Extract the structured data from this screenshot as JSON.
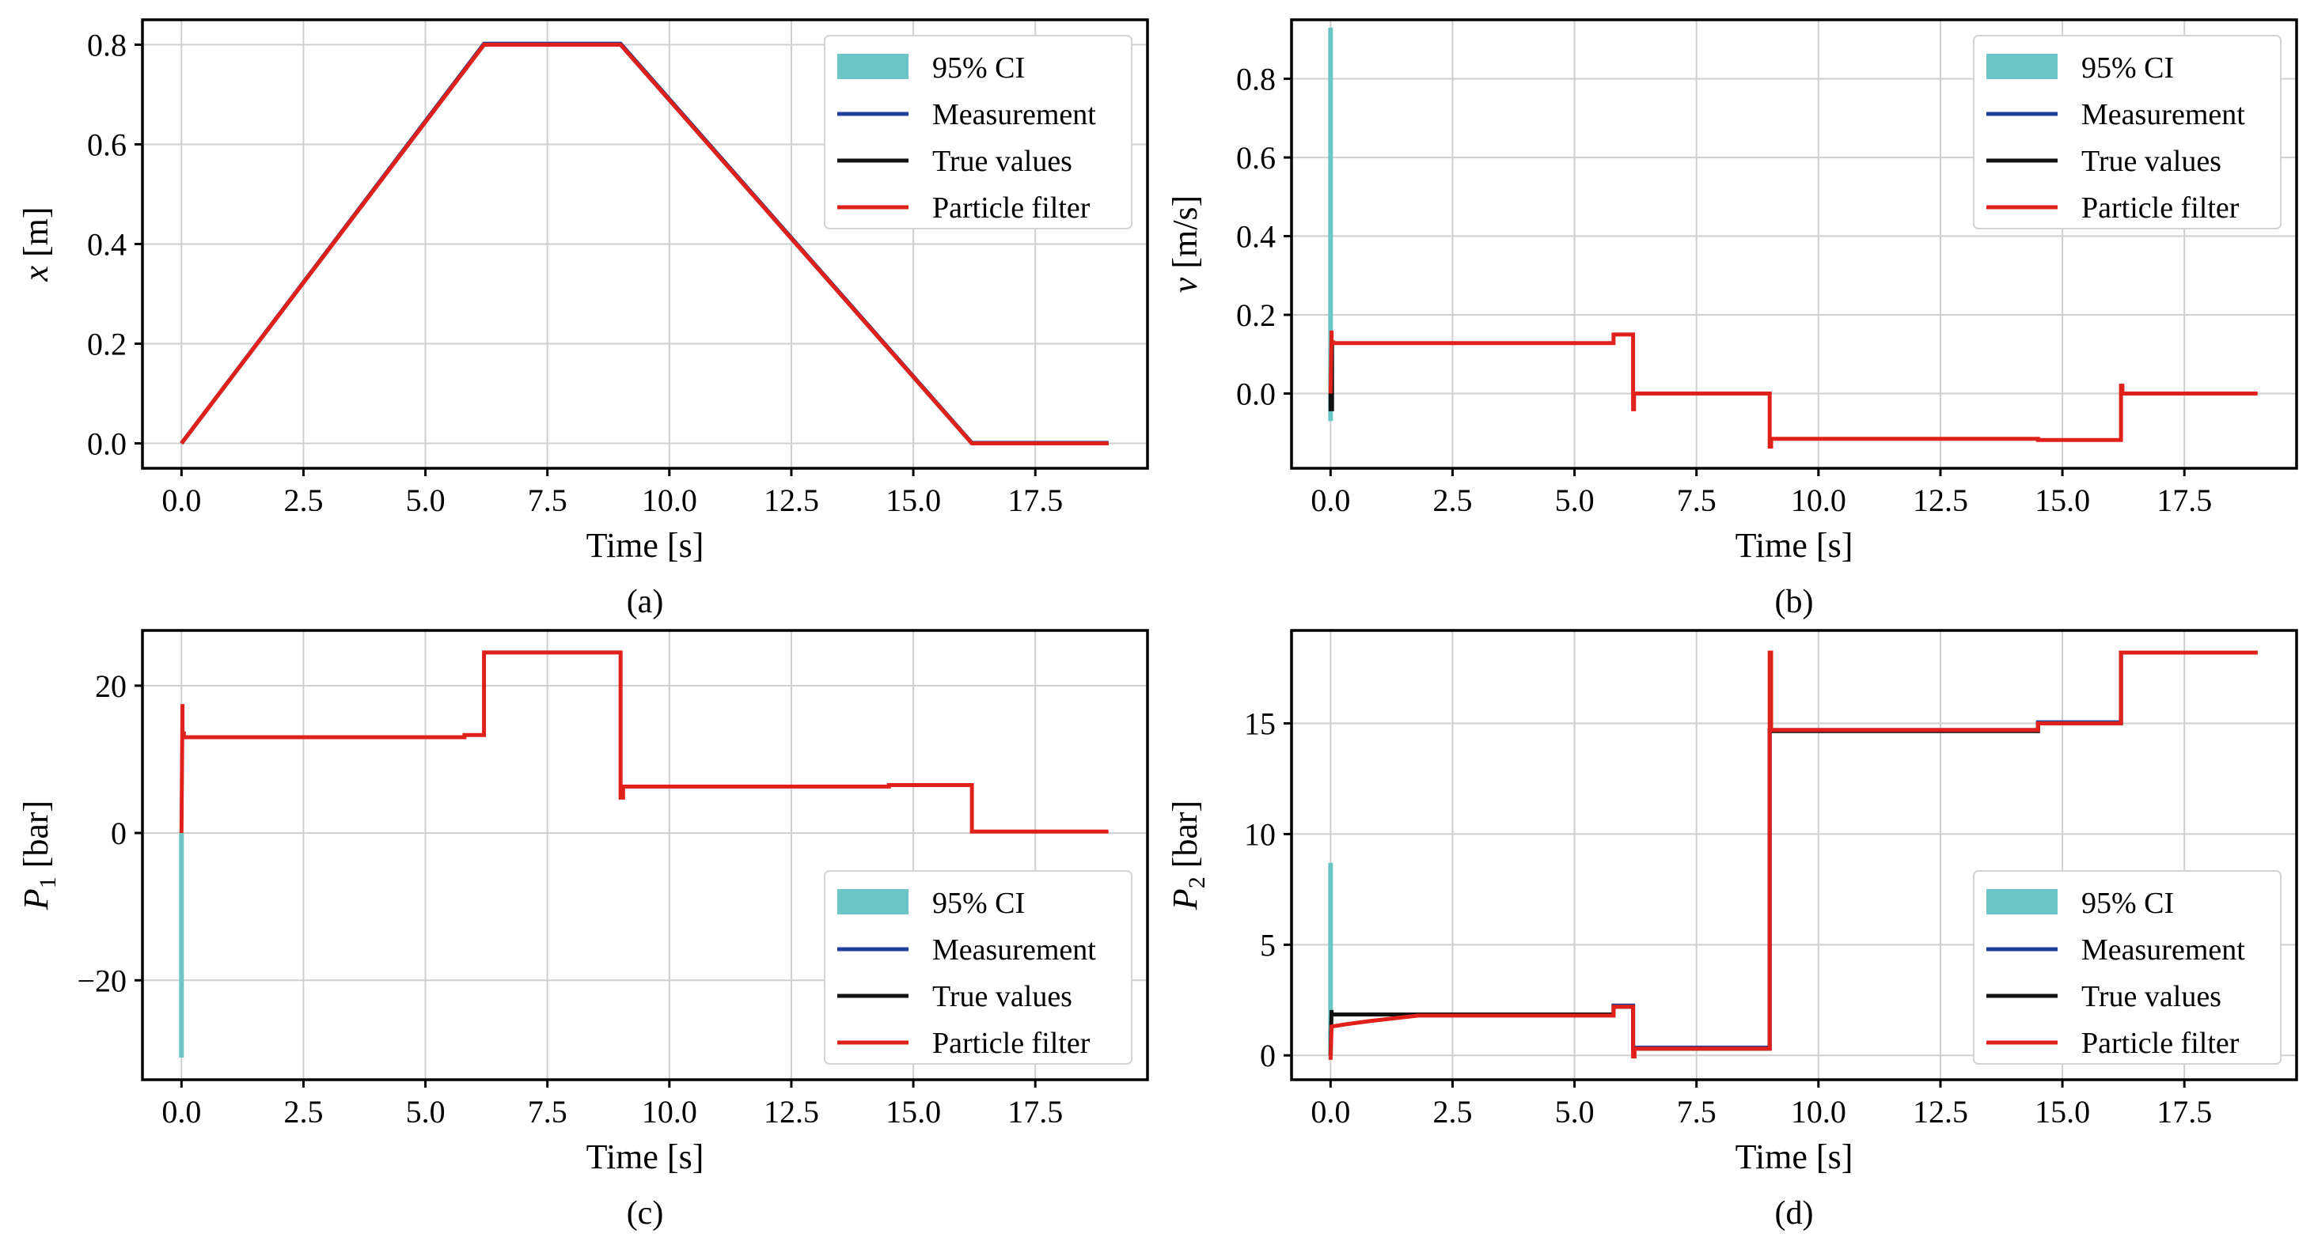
{
  "figure": {
    "captions": [
      "(a)",
      "(b)",
      "(c)",
      "(d)"
    ]
  },
  "colors": {
    "ci": "#6cc6c8",
    "measurement": "#1f3f9a",
    "true_values": "#111111",
    "particle_filter": "#e0201b"
  },
  "chart_data": [
    {
      "id": "a",
      "type": "line",
      "caption": "(a)",
      "xlabel": "Time [s]",
      "ylabel_var": "x",
      "ylabel_sub": "",
      "ylabel_unit": " [m]",
      "xlim": [
        -0.8,
        19.8
      ],
      "ylim": [
        -0.05,
        0.85
      ],
      "xticks": [
        0.0,
        2.5,
        5.0,
        7.5,
        10.0,
        12.5,
        15.0,
        17.5
      ],
      "xtick_labels": [
        "0.0",
        "2.5",
        "5.0",
        "7.5",
        "10.0",
        "12.5",
        "15.0",
        "17.5"
      ],
      "yticks": [
        0.0,
        0.2,
        0.4,
        0.6,
        0.8
      ],
      "ytick_labels": [
        "0.0",
        "0.2",
        "0.4",
        "0.6",
        "0.8"
      ],
      "legend": [
        "95% CI",
        "Measurement",
        "True values",
        "Particle filter"
      ],
      "legend_loc": "upper right",
      "series": [
        {
          "name": "True values",
          "x": [
            0,
            6.2,
            9.0,
            16.2,
            19.0
          ],
          "y": [
            0,
            0.8,
            0.8,
            0,
            0
          ]
        },
        {
          "name": "Measurement",
          "x": [
            0,
            6.2,
            9.0,
            16.2,
            19.0
          ],
          "y": [
            0,
            0.802,
            0.802,
            0.001,
            0.001
          ]
        },
        {
          "name": "Particle filter",
          "x": [
            0,
            6.2,
            9.0,
            16.2,
            19.0
          ],
          "y": [
            0,
            0.8,
            0.8,
            0,
            0
          ]
        }
      ],
      "ci": null
    },
    {
      "id": "b",
      "type": "line",
      "caption": "(b)",
      "xlabel": "Time [s]",
      "ylabel_var": "v",
      "ylabel_sub": "",
      "ylabel_unit": " [m/s]",
      "xlim": [
        -0.8,
        19.8
      ],
      "ylim": [
        -0.19,
        0.95
      ],
      "xticks": [
        0.0,
        2.5,
        5.0,
        7.5,
        10.0,
        12.5,
        15.0,
        17.5
      ],
      "xtick_labels": [
        "0.0",
        "2.5",
        "5.0",
        "7.5",
        "10.0",
        "12.5",
        "15.0",
        "17.5"
      ],
      "yticks": [
        0.0,
        0.2,
        0.4,
        0.6,
        0.8
      ],
      "ytick_labels": [
        "0.0",
        "0.2",
        "0.4",
        "0.6",
        "0.8"
      ],
      "legend": [
        "95% CI",
        "Measurement",
        "True values",
        "Particle filter"
      ],
      "legend_loc": "upper right",
      "series": [
        {
          "name": "True values",
          "x": [
            0,
            0,
            0.03,
            0.03
          ],
          "y": [
            0,
            -0.04,
            -0.04,
            0.128
          ]
        },
        {
          "name": "Particle filter",
          "x": [
            0,
            0.02,
            0.02,
            0.05,
            0.05,
            5.8,
            5.8,
            6.2,
            6.2,
            6.22,
            6.22,
            9.0,
            9.0,
            9.03,
            9.03,
            14.5,
            14.5,
            16.2,
            16.2,
            16.23,
            16.23,
            19.0
          ],
          "y": [
            0,
            0.16,
            0.13,
            0.13,
            0.128,
            0.128,
            0.15,
            0.15,
            -0.04,
            -0.04,
            0.0,
            0.0,
            -0.135,
            -0.135,
            -0.115,
            -0.115,
            -0.118,
            -0.118,
            0.02,
            0.02,
            0.0,
            0.0
          ]
        }
      ],
      "ci": {
        "x": 0.0,
        "low": -0.07,
        "high": 0.93
      }
    },
    {
      "id": "c",
      "type": "line",
      "caption": "(c)",
      "xlabel": "Time [s]",
      "ylabel_var": "P",
      "ylabel_sub": "1",
      "ylabel_unit": " [bar]",
      "xlim": [
        -0.8,
        19.8
      ],
      "ylim": [
        -33.5,
        27.5
      ],
      "xticks": [
        0.0,
        2.5,
        5.0,
        7.5,
        10.0,
        12.5,
        15.0,
        17.5
      ],
      "xtick_labels": [
        "0.0",
        "2.5",
        "5.0",
        "7.5",
        "10.0",
        "12.5",
        "15.0",
        "17.5"
      ],
      "yticks": [
        -20,
        0,
        20
      ],
      "ytick_labels": [
        "−20",
        "0",
        "20"
      ],
      "legend": [
        "95% CI",
        "Measurement",
        "True values",
        "Particle filter"
      ],
      "legend_loc": "lower right",
      "series": [
        {
          "name": "Particle filter",
          "x": [
            0,
            0.02,
            0.02,
            0.05,
            0.05,
            5.8,
            5.8,
            6.2,
            6.2,
            9.0,
            9.0,
            9.05,
            9.05,
            14.5,
            14.5,
            16.2,
            16.2,
            19.0
          ],
          "y": [
            0,
            17.5,
            13.5,
            13.5,
            13.0,
            13.0,
            13.3,
            13.3,
            24.5,
            24.5,
            4.8,
            4.8,
            6.3,
            6.3,
            6.5,
            6.5,
            0.2,
            0.2
          ]
        }
      ],
      "ci": {
        "x": 0.0,
        "low": -30.5,
        "high": 0.0
      }
    },
    {
      "id": "d",
      "type": "line",
      "caption": "(d)",
      "xlabel": "Time [s]",
      "ylabel_var": "P",
      "ylabel_sub": "2",
      "ylabel_unit": " [bar]",
      "xlim": [
        -0.8,
        19.8
      ],
      "ylim": [
        -1.1,
        19.2
      ],
      "xticks": [
        0.0,
        2.5,
        5.0,
        7.5,
        10.0,
        12.5,
        15.0,
        17.5
      ],
      "xtick_labels": [
        "0.0",
        "2.5",
        "5.0",
        "7.5",
        "10.0",
        "12.5",
        "15.0",
        "17.5"
      ],
      "yticks": [
        0,
        5,
        10,
        15
      ],
      "ytick_labels": [
        "0",
        "5",
        "10",
        "15"
      ],
      "legend": [
        "95% CI",
        "Measurement",
        "True values",
        "Particle filter"
      ],
      "legend_loc": "lower right",
      "series": [
        {
          "name": "Measurement",
          "x": [
            0.05,
            5.8,
            5.8,
            6.2,
            6.2,
            9.0,
            9.0,
            14.5,
            14.5,
            16.2,
            16.2,
            19.0
          ],
          "y": [
            1.85,
            1.85,
            2.25,
            2.25,
            0.35,
            0.35,
            14.7,
            14.7,
            15.05,
            15.05,
            18.2,
            18.2
          ]
        },
        {
          "name": "True values",
          "x": [
            0,
            0.02,
            0.02,
            5.8,
            5.8,
            6.2,
            6.2,
            9.0,
            9.0,
            14.5,
            14.5,
            16.2,
            16.2,
            19.0
          ],
          "y": [
            0,
            2.05,
            1.85,
            1.85,
            2.2,
            2.2,
            0.3,
            0.3,
            14.65,
            14.65,
            15.0,
            15.0,
            18.2,
            18.2
          ]
        },
        {
          "name": "Particle filter",
          "x": [
            0,
            0.02,
            0.3,
            0.8,
            1.8,
            5.8,
            5.8,
            6.2,
            6.2,
            6.23,
            6.23,
            9.0,
            9.0,
            9.03,
            9.03,
            14.5,
            14.5,
            16.2,
            16.2,
            19.0
          ],
          "y": [
            -0.2,
            1.3,
            1.4,
            1.55,
            1.8,
            1.8,
            2.2,
            2.2,
            -0.05,
            -0.05,
            0.3,
            0.3,
            18.2,
            18.2,
            14.7,
            14.7,
            15.0,
            15.0,
            18.2,
            18.2
          ]
        }
      ],
      "ci": {
        "x": 0.0,
        "low": 0.0,
        "high": 8.7
      }
    }
  ]
}
